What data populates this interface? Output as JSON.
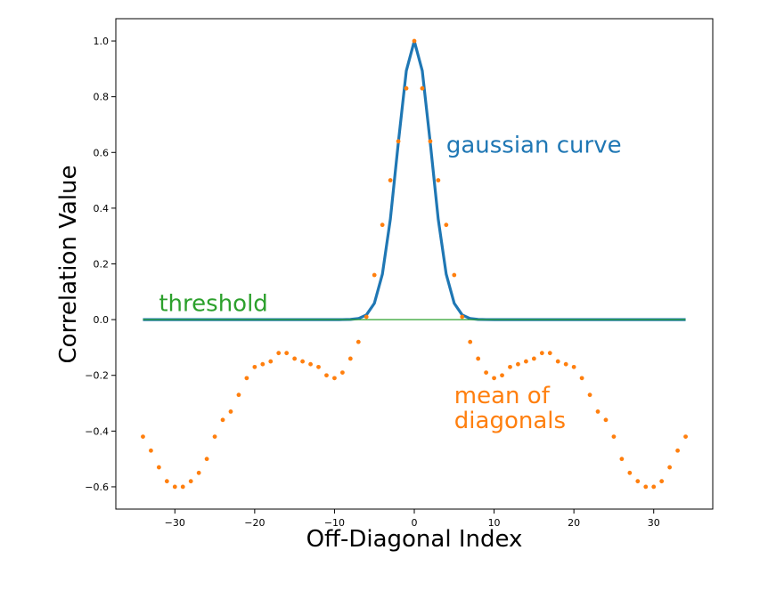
{
  "chart_data": {
    "type": "line",
    "xlabel": "Off-Diagonal Index",
    "ylabel": "Correlation Value",
    "xlim": [
      -37.4,
      37.4
    ],
    "ylim": [
      -0.68,
      1.08
    ],
    "xticks": [
      -30,
      -20,
      -10,
      0,
      10,
      20,
      30
    ],
    "xtick_labels": [
      "−30",
      "−20",
      "−10",
      "0",
      "10",
      "20",
      "30"
    ],
    "yticks": [
      -0.6,
      -0.4,
      -0.2,
      0.0,
      0.2,
      0.4,
      0.6,
      0.8,
      1.0
    ],
    "ytick_labels": [
      "−0.6",
      "−0.4",
      "−0.2",
      "0.0",
      "0.2",
      "0.4",
      "0.6",
      "0.8",
      "1.0"
    ],
    "grid": false,
    "legend": "none",
    "annotations": [
      {
        "text": "gaussian curve",
        "x": 4.0,
        "y": 0.6,
        "color": "#1f77b4"
      },
      {
        "text": "threshold",
        "x": -32.0,
        "y": 0.03,
        "color": "#2ca02c"
      },
      {
        "text": "mean of",
        "x": 5.0,
        "y": -0.3,
        "color": "#ff7f0e"
      },
      {
        "text": "diagonals",
        "x": 5.0,
        "y": -0.39,
        "color": "#ff7f0e"
      }
    ],
    "series": [
      {
        "type": "line",
        "color": "#1f77b4",
        "gaussian": {
          "mu": 0,
          "sigma": 2.1,
          "amplitude": 1.0,
          "x_from": -34,
          "x_to": 34
        }
      },
      {
        "type": "line",
        "color": "#2ca02c",
        "x": [
          -34,
          34
        ],
        "y": [
          0.0,
          0.0
        ]
      },
      {
        "type": "scatter",
        "color": "#ff7f0e",
        "x": [
          -34,
          -33,
          -32,
          -31,
          -30,
          -29,
          -28,
          -27,
          -26,
          -25,
          -24,
          -23,
          -22,
          -21,
          -20,
          -19,
          -18,
          -17,
          -16,
          -15,
          -14,
          -13,
          -12,
          -11,
          -10,
          -9,
          -8,
          -7,
          -6,
          -5,
          -4,
          -3,
          -2,
          -1,
          0,
          1,
          2,
          3,
          4,
          5,
          6,
          7,
          8,
          9,
          10,
          11,
          12,
          13,
          14,
          15,
          16,
          17,
          18,
          19,
          20,
          21,
          22,
          23,
          24,
          25,
          26,
          27,
          28,
          29,
          30,
          31,
          32,
          33,
          34
        ],
        "y": [
          -0.42,
          -0.47,
          -0.53,
          -0.58,
          -0.6,
          -0.6,
          -0.58,
          -0.55,
          -0.5,
          -0.42,
          -0.36,
          -0.33,
          -0.27,
          -0.21,
          -0.17,
          -0.16,
          -0.15,
          -0.12,
          -0.12,
          -0.14,
          -0.15,
          -0.16,
          -0.17,
          -0.2,
          -0.21,
          -0.19,
          -0.14,
          -0.08,
          0.01,
          0.16,
          0.34,
          0.5,
          0.64,
          0.83,
          1.0,
          0.83,
          0.64,
          0.5,
          0.34,
          0.16,
          0.01,
          -0.08,
          -0.14,
          -0.19,
          -0.21,
          -0.2,
          -0.17,
          -0.16,
          -0.15,
          -0.14,
          -0.12,
          -0.12,
          -0.15,
          -0.16,
          -0.17,
          -0.21,
          -0.27,
          -0.33,
          -0.36,
          -0.42,
          -0.5,
          -0.55,
          -0.58,
          -0.6,
          -0.6,
          -0.58,
          -0.53,
          -0.47,
          -0.42
        ]
      }
    ]
  }
}
